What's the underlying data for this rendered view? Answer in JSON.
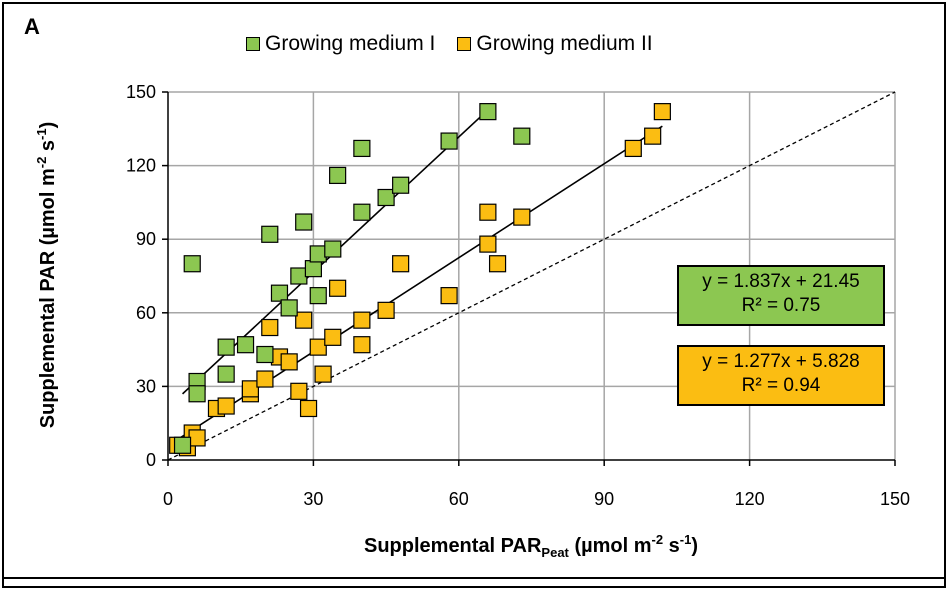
{
  "panel_label": "A",
  "colors": {
    "series1": "#8cc751",
    "series2": "#fbbd12",
    "grid": "#a6a6a6",
    "axis": "#000000"
  },
  "chart_data": {
    "type": "scatter",
    "xlabel_main": "Supplemental PAR",
    "xlabel_sub": "Peat",
    "xlabel_units": " (µmol m",
    "xlabel_sup1": "-2",
    "xlabel_mid": " s",
    "xlabel_sup2": "-1",
    "xlabel_end": ")",
    "ylabel_main": "Supplemental PAR (µmol m",
    "ylabel_sup1": "-2",
    "ylabel_mid": " s",
    "ylabel_sup2": "-1",
    "ylabel_end": ")",
    "xlim": [
      0,
      150
    ],
    "ylim": [
      0,
      150
    ],
    "xticks": [
      0,
      30,
      60,
      90,
      120,
      150
    ],
    "yticks": [
      0,
      30,
      60,
      90,
      120,
      150
    ],
    "grid": true,
    "legend_position": "top",
    "reference_line": {
      "style": "dashed",
      "slope": 1,
      "intercept": 0
    },
    "series": [
      {
        "name": "Growing medium I",
        "color": "#8cc751",
        "points": [
          [
            3,
            6
          ],
          [
            5,
            80
          ],
          [
            6,
            32
          ],
          [
            6,
            27
          ],
          [
            12,
            46
          ],
          [
            12,
            35
          ],
          [
            16,
            47
          ],
          [
            20,
            43
          ],
          [
            21,
            92
          ],
          [
            23,
            68
          ],
          [
            25,
            62
          ],
          [
            27,
            75
          ],
          [
            28,
            97
          ],
          [
            30,
            78
          ],
          [
            31,
            67
          ],
          [
            31,
            84
          ],
          [
            34,
            86
          ],
          [
            35,
            116
          ],
          [
            40,
            127
          ],
          [
            40,
            101
          ],
          [
            45,
            107
          ],
          [
            48,
            112
          ],
          [
            58,
            130
          ],
          [
            66,
            142
          ],
          [
            73,
            132
          ]
        ],
        "fit": {
          "slope": 1.837,
          "intercept": 21.45,
          "x_range": [
            3,
            66
          ]
        },
        "equation": "y = 1.837x + 21.45",
        "r2": "R² = 0.75"
      },
      {
        "name": "Growing medium II",
        "color": "#fbbd12",
        "points": [
          [
            2,
            6
          ],
          [
            4,
            5
          ],
          [
            5,
            11
          ],
          [
            6,
            9
          ],
          [
            10,
            21
          ],
          [
            12,
            22
          ],
          [
            17,
            27
          ],
          [
            17,
            29
          ],
          [
            20,
            33
          ],
          [
            21,
            54
          ],
          [
            23,
            42
          ],
          [
            25,
            40
          ],
          [
            27,
            28
          ],
          [
            28,
            57
          ],
          [
            29,
            21
          ],
          [
            31,
            46
          ],
          [
            32,
            35
          ],
          [
            34,
            50
          ],
          [
            35,
            70
          ],
          [
            40,
            57
          ],
          [
            40,
            47
          ],
          [
            45,
            61
          ],
          [
            48,
            80
          ],
          [
            58,
            67
          ],
          [
            66,
            101
          ],
          [
            66,
            88
          ],
          [
            68,
            80
          ],
          [
            73,
            99
          ],
          [
            96,
            127
          ],
          [
            100,
            132
          ],
          [
            102,
            142
          ]
        ],
        "fit": {
          "slope": 1.277,
          "intercept": 5.828,
          "x_range": [
            2,
            102
          ]
        },
        "equation": "y = 1.277x + 5.828",
        "r2": "R² = 0.94"
      }
    ]
  }
}
